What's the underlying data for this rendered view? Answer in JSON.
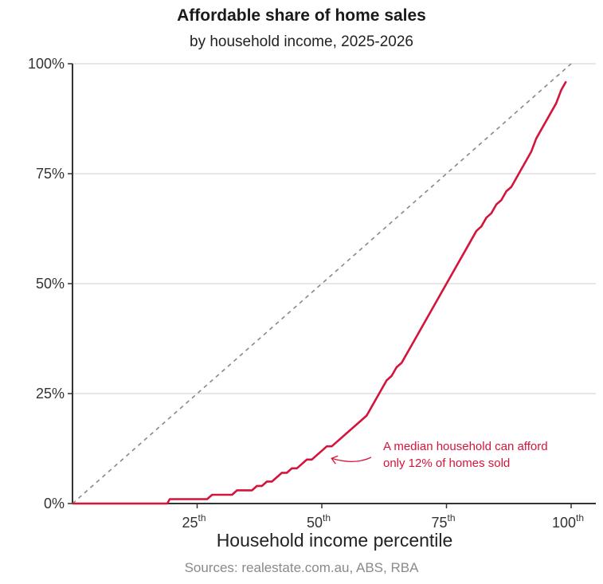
{
  "chart_data": {
    "type": "line",
    "title": "Affordable share of home sales",
    "subtitle": "by household income, 2025-2026",
    "xlabel": "Household income percentile",
    "ylabel": "",
    "source": "Sources: realestate.com.au, ABS, RBA",
    "xlim": [
      0,
      100
    ],
    "ylim": [
      0,
      100
    ],
    "x_ticks": [
      {
        "value": 25,
        "num": "25",
        "sup": "th"
      },
      {
        "value": 50,
        "num": "50",
        "sup": "th"
      },
      {
        "value": 75,
        "num": "75",
        "sup": "th"
      },
      {
        "value": 100,
        "num": "100",
        "sup": "th"
      }
    ],
    "y_ticks": [
      {
        "value": 0,
        "label": "0%"
      },
      {
        "value": 25,
        "label": "25%"
      },
      {
        "value": 50,
        "label": "50%"
      },
      {
        "value": 75,
        "label": "75%"
      },
      {
        "value": 100,
        "label": "100%"
      }
    ],
    "grid": true,
    "series": [
      {
        "color": "#d4143a",
        "points": [
          [
            0,
            0
          ],
          [
            19,
            0
          ],
          [
            19.5,
            1
          ],
          [
            27,
            1
          ],
          [
            28,
            2
          ],
          [
            32,
            2
          ],
          [
            33,
            3
          ],
          [
            36,
            3
          ],
          [
            37,
            4
          ],
          [
            38,
            4
          ],
          [
            39,
            5
          ],
          [
            40,
            5
          ],
          [
            41,
            6
          ],
          [
            42,
            7
          ],
          [
            43,
            7
          ],
          [
            44,
            8
          ],
          [
            45,
            8
          ],
          [
            46,
            9
          ],
          [
            47,
            10
          ],
          [
            48,
            10
          ],
          [
            49,
            11
          ],
          [
            50,
            12
          ],
          [
            51,
            13
          ],
          [
            52,
            13
          ],
          [
            59,
            20
          ],
          [
            63,
            28
          ],
          [
            64,
            29
          ],
          [
            65,
            31
          ],
          [
            66,
            32
          ],
          [
            81,
            62
          ],
          [
            82,
            63
          ],
          [
            83,
            65
          ],
          [
            84,
            66
          ],
          [
            85,
            68
          ],
          [
            86,
            69
          ],
          [
            87,
            71
          ],
          [
            88,
            72
          ],
          [
            92,
            80
          ],
          [
            93,
            83
          ],
          [
            97,
            91
          ],
          [
            98,
            94
          ],
          [
            99,
            96
          ]
        ]
      }
    ],
    "reference_line": {
      "style": "dashed",
      "color": "#888888",
      "from": [
        0,
        0
      ],
      "to": [
        100,
        100
      ]
    },
    "annotation": {
      "lines": [
        "A median household can afford",
        "only 12% of homes sold"
      ],
      "target": [
        51,
        11
      ]
    }
  }
}
